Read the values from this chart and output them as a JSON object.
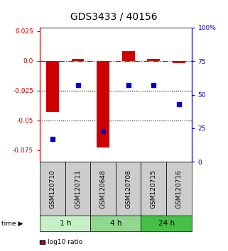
{
  "title": "GDS3433 / 40156",
  "samples": [
    "GSM120710",
    "GSM120711",
    "GSM120648",
    "GSM120708",
    "GSM120715",
    "GSM120716"
  ],
  "log10_ratio": [
    -0.043,
    0.002,
    -0.073,
    0.008,
    0.002,
    -0.002
  ],
  "percentile_rank": [
    17,
    57,
    23,
    57,
    57,
    43
  ],
  "time_groups": [
    {
      "label": "1 h",
      "samples": [
        "GSM120710",
        "GSM120711"
      ],
      "color": "#c8f0c8"
    },
    {
      "label": "4 h",
      "samples": [
        "GSM120648",
        "GSM120708"
      ],
      "color": "#90d890"
    },
    {
      "label": "24 h",
      "samples": [
        "GSM120715",
        "GSM120716"
      ],
      "color": "#48c048"
    }
  ],
  "ylim_left": [
    -0.085,
    0.028
  ],
  "ylim_right": [
    0,
    100
  ],
  "yticks_left": [
    0.025,
    0.0,
    -0.025,
    -0.05,
    -0.075
  ],
  "yticks_right": [
    100,
    75,
    50,
    25,
    0
  ],
  "bar_color": "#cc0000",
  "dot_color": "#0000cc",
  "dashed_line_color": "#cc0000",
  "title_fontsize": 10,
  "label_fontsize": 6.5,
  "tick_fontsize": 6.5,
  "legend_fontsize": 6.5,
  "sample_box_color": "#cccccc",
  "background_color": "#ffffff"
}
